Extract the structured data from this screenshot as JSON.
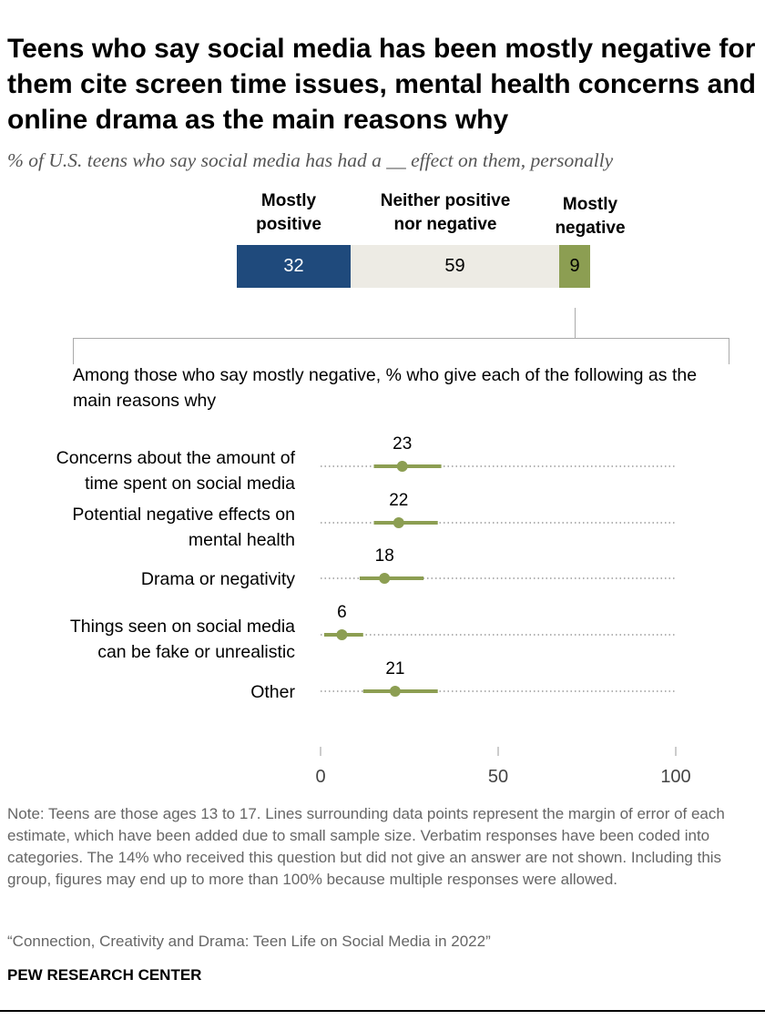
{
  "title": "Teens who say social media has been mostly negative for them cite screen time issues, mental health concerns and online drama as the main reasons why",
  "subtitle": "% of U.S. teens who say social media has had a __ effect on them, personally",
  "effect_bar": {
    "segments": [
      {
        "label_line1": "Mostly",
        "label_line2": "positive",
        "value": 32,
        "color": "#1f4a7c"
      },
      {
        "label_line1": "Neither positive",
        "label_line2": "nor negative",
        "value": 59,
        "color": "#edebe4"
      },
      {
        "label_line1": "Mostly",
        "label_line2": "negative",
        "value": 9,
        "color": "#8c9e52"
      }
    ]
  },
  "intro": "Among those who say mostly negative, % who give each of the following as the main reasons why",
  "chart_data": {
    "type": "scatter",
    "title": "",
    "xlabel": "",
    "ylabel": "",
    "xlim": [
      0,
      100
    ],
    "xticks": [
      0,
      50,
      100
    ],
    "grid": false,
    "point_color": "#8c9e52",
    "categories": [
      {
        "line1": "Concerns about the amount of",
        "line2": "time spent on social media"
      },
      {
        "line1": "Potential negative effects on",
        "line2": "mental health"
      },
      {
        "line1": "Drama or negativity",
        "line2": ""
      },
      {
        "line1": "Things seen on social media",
        "line2": "can be fake or unrealistic"
      },
      {
        "line1": "Other",
        "line2": ""
      }
    ],
    "values": [
      23,
      22,
      18,
      6,
      21
    ],
    "error_low": [
      15,
      15,
      11,
      1,
      12
    ],
    "error_high": [
      34,
      33,
      29,
      12,
      33
    ]
  },
  "note": "Note: Teens are those ages 13 to 17. Lines surrounding data points represent the margin of error of each estimate, which have been added due to small sample size. Verbatim responses have been coded into categories. The 14% who received this question but did not give an answer are not shown. Including this group, figures may end up to more than 100% because multiple responses were allowed.",
  "source": "“Connection, Creativity and Drama: Teen Life on Social Media in 2022”",
  "org": "PEW RESEARCH CENTER"
}
